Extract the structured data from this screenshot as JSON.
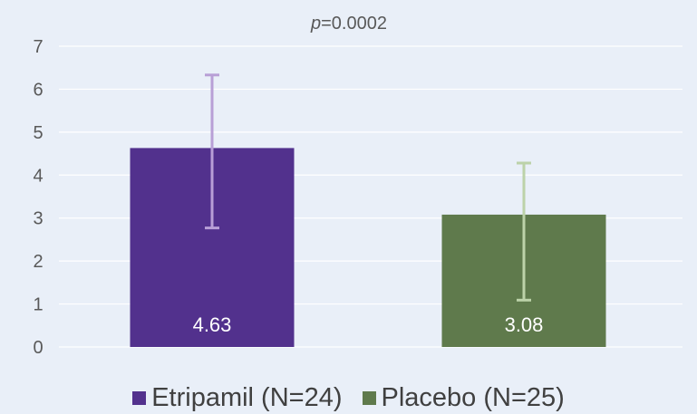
{
  "chart_data": {
    "type": "bar",
    "title": "",
    "annotation": {
      "prefix": "p",
      "value": "=0.0002"
    },
    "xlabel": "",
    "ylabel": "",
    "ylim": [
      0,
      7
    ],
    "yticks": [
      "0",
      "1",
      "2",
      "3",
      "4",
      "5",
      "6",
      "7"
    ],
    "grid": true,
    "legend_position": "bottom",
    "categories": [
      "Etripamil (N=24)",
      "Placebo (N=25)"
    ],
    "values": [
      4.63,
      3.08
    ],
    "value_labels": [
      "4.63",
      "3.08"
    ],
    "error_bars": [
      {
        "low": 2.77,
        "high": 6.33
      },
      {
        "low": 1.09,
        "high": 4.28
      }
    ],
    "colors": [
      "#52318d",
      "#5f7a4c"
    ],
    "error_colors": [
      "#b89fd6",
      "#bcd2a9"
    ]
  }
}
